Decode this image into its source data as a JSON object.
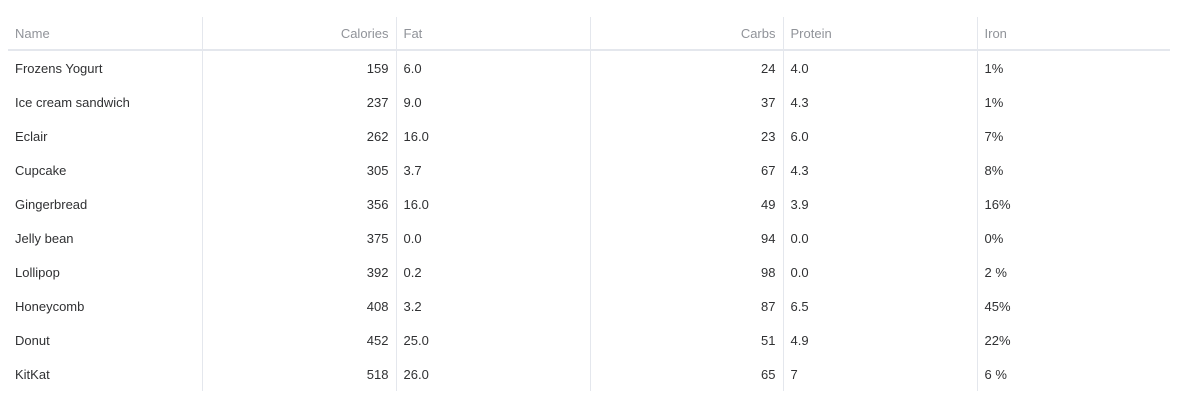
{
  "table": {
    "columns": [
      {
        "label": "Name",
        "align": "left"
      },
      {
        "label": "Calories",
        "align": "right"
      },
      {
        "label": "Fat",
        "align": "left"
      },
      {
        "label": "Carbs",
        "align": "right"
      },
      {
        "label": "Protein",
        "align": "left"
      },
      {
        "label": "Iron",
        "align": "left"
      }
    ],
    "rows": [
      {
        "name": "Frozens Yogurt",
        "calories": "159",
        "fat": "6.0",
        "carbs": "24",
        "protein": "4.0",
        "iron": "1%"
      },
      {
        "name": "Ice cream sandwich",
        "calories": "237",
        "fat": "9.0",
        "carbs": "37",
        "protein": "4.3",
        "iron": "1%"
      },
      {
        "name": "Eclair",
        "calories": "262",
        "fat": "16.0",
        "carbs": "23",
        "protein": "6.0",
        "iron": "7%"
      },
      {
        "name": "Cupcake",
        "calories": "305",
        "fat": "3.7",
        "carbs": "67",
        "protein": "4.3",
        "iron": "8%"
      },
      {
        "name": "Gingerbread",
        "calories": "356",
        "fat": "16.0",
        "carbs": "49",
        "protein": "3.9",
        "iron": "16%"
      },
      {
        "name": "Jelly bean",
        "calories": "375",
        "fat": "0.0",
        "carbs": "94",
        "protein": "0.0",
        "iron": "0%"
      },
      {
        "name": "Lollipop",
        "calories": "392",
        "fat": "0.2",
        "carbs": "98",
        "protein": "0.0",
        "iron": "2 %"
      },
      {
        "name": "Honeycomb",
        "calories": "408",
        "fat": "3.2",
        "carbs": "87",
        "protein": "6.5",
        "iron": "45%"
      },
      {
        "name": "Donut",
        "calories": "452",
        "fat": "25.0",
        "carbs": "51",
        "protein": "4.9",
        "iron": "22%"
      },
      {
        "name": "KitKat",
        "calories": "518",
        "fat": "26.0",
        "carbs": "65",
        "protein": "7",
        "iron": "6 %"
      }
    ]
  }
}
